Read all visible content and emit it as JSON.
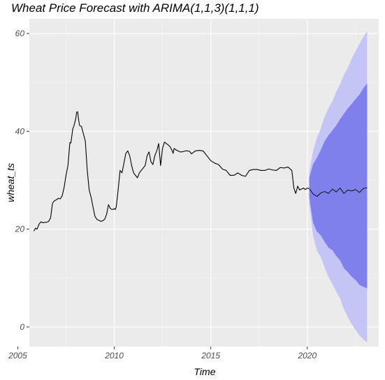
{
  "chart_data": {
    "type": "line",
    "title": "Wheat Price Forecast with ARIMA(1,1,3)(1,1,1)",
    "xlabel": "Time",
    "ylabel": "wheat_ts",
    "xlim": [
      2005.6,
      2023.7
    ],
    "ylim": [
      -4,
      63
    ],
    "x_ticks": [
      2005,
      2010,
      2015,
      2020
    ],
    "x_tick_labels": [
      "2005",
      "2010",
      "2015",
      "2020"
    ],
    "y_ticks": [
      0,
      20,
      40,
      60
    ],
    "y_tick_labels": [
      "0",
      "20",
      "40",
      "60"
    ],
    "grid": true,
    "legend": "none",
    "colors": {
      "panel_background": "#ebebeb",
      "grid_major": "#ffffff",
      "grid_minor": "#f5f5f5",
      "history_line": "#000000",
      "forecast_line": "#000000",
      "pi_95": "#c5c5f5",
      "pi_80": "#8080ec"
    },
    "history": {
      "x": [
        2005.83,
        2005.92,
        2006.0,
        2006.1,
        2006.2,
        2006.3,
        2006.4,
        2006.5,
        2006.6,
        2006.7,
        2006.8,
        2006.9,
        2007.0,
        2007.1,
        2007.2,
        2007.3,
        2007.4,
        2007.5,
        2007.6,
        2007.7,
        2007.75,
        2007.8,
        2007.85,
        2007.9,
        2008.0,
        2008.05,
        2008.1,
        2008.15,
        2008.2,
        2008.3,
        2008.4,
        2008.5,
        2008.6,
        2008.7,
        2008.8,
        2008.9,
        2009.0,
        2009.1,
        2009.2,
        2009.3,
        2009.4,
        2009.5,
        2009.6,
        2009.7,
        2009.8,
        2009.9,
        2010.0,
        2010.05,
        2010.1,
        2010.2,
        2010.3,
        2010.4,
        2010.5,
        2010.6,
        2010.7,
        2010.8,
        2010.9,
        2011.0,
        2011.1,
        2011.2,
        2011.3,
        2011.4,
        2011.5,
        2011.6,
        2011.7,
        2011.8,
        2011.9,
        2012.0,
        2012.1,
        2012.2,
        2012.3,
        2012.4,
        2012.5,
        2012.6,
        2012.7,
        2012.8,
        2012.9,
        2013.0,
        2013.05,
        2013.1,
        2013.2,
        2013.3,
        2013.4,
        2013.5,
        2013.6,
        2013.7,
        2013.8,
        2013.9,
        2014.0,
        2014.2,
        2014.4,
        2014.6,
        2014.8,
        2015.0,
        2015.2,
        2015.4,
        2015.6,
        2015.8,
        2016.0,
        2016.2,
        2016.4,
        2016.6,
        2016.8,
        2017.0,
        2017.2,
        2017.4,
        2017.6,
        2017.8,
        2018.0,
        2018.2,
        2018.4,
        2018.6,
        2018.8,
        2019.0,
        2019.2,
        2019.3,
        2019.4,
        2019.45,
        2019.5,
        2019.6,
        2019.7,
        2019.8,
        2019.9,
        2020.0,
        2020.08
      ],
      "y": [
        19.6,
        20.2,
        20.0,
        21.0,
        21.5,
        21.3,
        21.4,
        21.4,
        21.6,
        22.3,
        25.3,
        25.8,
        26.0,
        26.3,
        26.2,
        26.8,
        28.5,
        31.0,
        33.0,
        37.7,
        37.6,
        39.0,
        40.5,
        41.0,
        42.5,
        43.9,
        44.0,
        42.5,
        41.2,
        41.0,
        39.5,
        38.0,
        32.0,
        28.0,
        26.5,
        24.5,
        22.6,
        22.0,
        21.8,
        21.6,
        21.7,
        22.0,
        23.0,
        25.0,
        24.2,
        24.0,
        24.2,
        24.0,
        24.5,
        28.0,
        32.0,
        31.5,
        33.5,
        35.5,
        36.0,
        35.0,
        33.0,
        31.5,
        31.0,
        30.5,
        31.5,
        32.0,
        32.5,
        33.0,
        35.0,
        35.8,
        33.8,
        33.2,
        35.0,
        36.0,
        37.5,
        33.0,
        36.5,
        37.8,
        37.5,
        37.2,
        36.8,
        36.0,
        35.5,
        36.5,
        36.2,
        36.0,
        35.8,
        35.8,
        35.9,
        36.0,
        36.0,
        35.9,
        35.4,
        36.0,
        36.1,
        36.0,
        35.0,
        34.0,
        33.5,
        33.2,
        32.3,
        32.0,
        31.0,
        31.0,
        31.5,
        31.0,
        30.8,
        32.0,
        32.2,
        32.2,
        32.0,
        32.0,
        32.3,
        32.1,
        32.0,
        32.6,
        32.5,
        32.7,
        32.0,
        28.5,
        27.3,
        28.0,
        28.8,
        28.0,
        28.2,
        28.4,
        28.1,
        28.4,
        28.3
      ],
      "notes": ""
    },
    "forecast": {
      "x": [
        2020.1,
        2020.3,
        2020.5,
        2020.7,
        2020.9,
        2021.1,
        2021.3,
        2021.5,
        2021.7,
        2021.9,
        2022.1,
        2022.3,
        2022.5,
        2022.7,
        2022.9,
        2023.1
      ],
      "mean": [
        28.3,
        27.2,
        26.7,
        27.4,
        27.7,
        27.3,
        28.2,
        27.6,
        28.4,
        27.3,
        28.0,
        27.8,
        28.1,
        27.5,
        28.3,
        28.5
      ],
      "lo80": [
        26.5,
        21.3,
        19.5,
        18.7,
        17.4,
        16.2,
        15.7,
        14.5,
        13.6,
        12.0,
        11.2,
        10.3,
        9.6,
        8.6,
        8.2,
        7.9
      ],
      "hi80": [
        30.5,
        33.3,
        34.6,
        36.2,
        38.0,
        39.2,
        40.2,
        41.2,
        42.5,
        43.6,
        44.7,
        45.6,
        46.6,
        47.5,
        48.8,
        49.8
      ],
      "lo95": [
        25.3,
        18.6,
        15.6,
        14.3,
        12.1,
        10.2,
        8.8,
        7.2,
        5.8,
        3.6,
        2.0,
        0.6,
        -0.6,
        -1.7,
        -2.5,
        -3.2
      ],
      "hi95": [
        31.6,
        36.0,
        38.7,
        40.6,
        43.0,
        44.8,
        46.1,
        48.1,
        49.6,
        51.6,
        53.0,
        54.8,
        56.4,
        57.8,
        59.3,
        60.5
      ]
    }
  }
}
